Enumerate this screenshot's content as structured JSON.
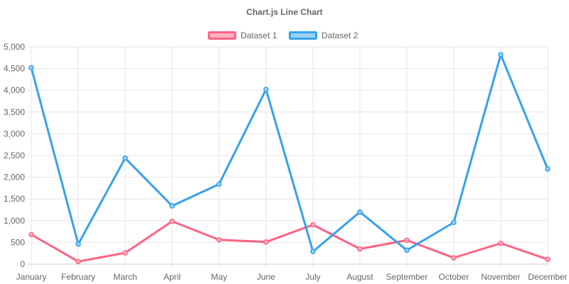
{
  "chart_data": {
    "type": "line",
    "title": "Chart.js Line Chart",
    "xlabel": "",
    "ylabel": "",
    "categories": [
      "January",
      "February",
      "March",
      "April",
      "May",
      "June",
      "July",
      "August",
      "September",
      "October",
      "November",
      "December"
    ],
    "ylim": [
      0,
      5000
    ],
    "y_tick_step": 500,
    "y_tick_labels": [
      "0",
      "500",
      "1,000",
      "1,500",
      "2,000",
      "2,500",
      "3,000",
      "3,500",
      "4,000",
      "4,500",
      "5,000"
    ],
    "grid": true,
    "legend_position": "top-center",
    "series": [
      {
        "name": "Dataset 1",
        "color": "#ff6384",
        "fill_color": "#ffb1c1",
        "values": [
          680,
          60,
          260,
          985,
          560,
          510,
          905,
          350,
          550,
          145,
          480,
          110
        ]
      },
      {
        "name": "Dataset 2",
        "color": "#36a2eb",
        "fill_color": "#9ad0f5",
        "values": [
          4520,
          460,
          2440,
          1340,
          1840,
          4020,
          290,
          1200,
          320,
          960,
          4820,
          2190
        ]
      }
    ]
  }
}
